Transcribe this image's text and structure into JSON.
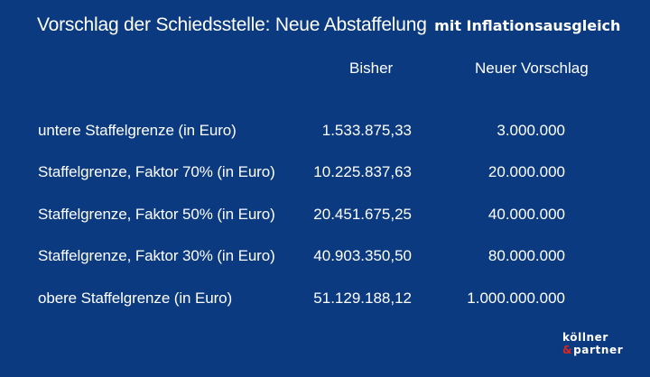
{
  "title": {
    "main": "Vorschlag der Schiedsstelle: Neue Abstaffelung",
    "sub": "mit Inflationsausgleich"
  },
  "table": {
    "columns": [
      "Bisher",
      "Neuer Vorschlag"
    ],
    "rows": [
      {
        "label": "untere Staffelgrenze (in Euro)",
        "bisher": "1.533.875,33",
        "neu": "3.000.000"
      },
      {
        "label": "Staffelgrenze, Faktor 70% (in Euro)",
        "bisher": "10.225.837,63",
        "neu": "20.000.000"
      },
      {
        "label": "Staffelgrenze, Faktor 50% (in Euro)",
        "bisher": "20.451.675,25",
        "neu": "40.000.000"
      },
      {
        "label": "Staffelgrenze, Faktor 30% (in Euro)",
        "bisher": "40.903.350,50",
        "neu": "80.000.000"
      },
      {
        "label": "obere Staffelgrenze (in Euro)",
        "bisher": "51.129.188,12",
        "neu": "1.000.000.000"
      }
    ]
  },
  "logo": {
    "line1": "köllner",
    "ampersand": "&",
    "line2": "partner"
  },
  "colors": {
    "background": "#0b3a80",
    "text": "#ffffff",
    "logo_accent": "#e0261c"
  }
}
